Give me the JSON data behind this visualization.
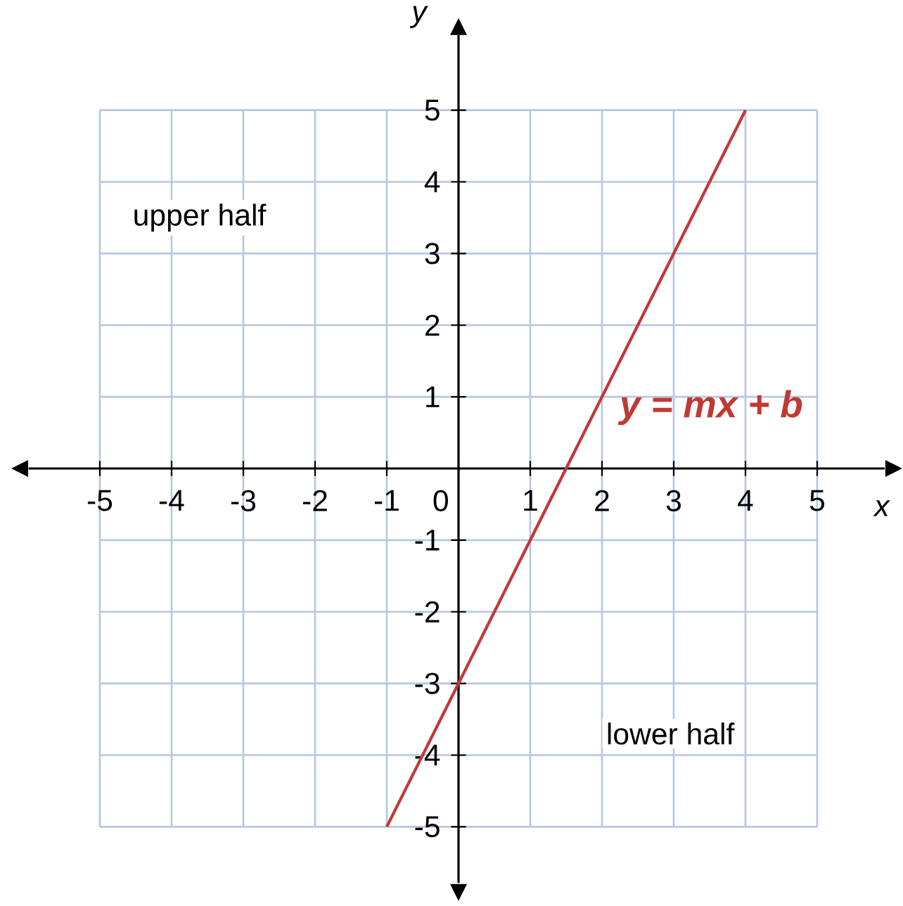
{
  "chart_data": {
    "type": "line",
    "xlabel": "x",
    "ylabel": "y",
    "xlim": [
      -5,
      5
    ],
    "ylim": [
      -5,
      5
    ],
    "xticks": [
      -5,
      -4,
      -3,
      -2,
      -1,
      0,
      1,
      2,
      3,
      4,
      5
    ],
    "yticks": [
      -5,
      -4,
      -3,
      -2,
      -1,
      {
        "value": 0,
        "label": null
      },
      1,
      2,
      3,
      4,
      5
    ],
    "grid": true,
    "legend": false,
    "marker": "none",
    "line_style": "solid",
    "series": [
      {
        "name": "y = mx + b",
        "color": "#bf3a35",
        "x": [
          -1,
          4
        ],
        "values": [
          -5,
          5
        ]
      }
    ],
    "annotations": [
      "upper half",
      "lower half"
    ]
  }
}
